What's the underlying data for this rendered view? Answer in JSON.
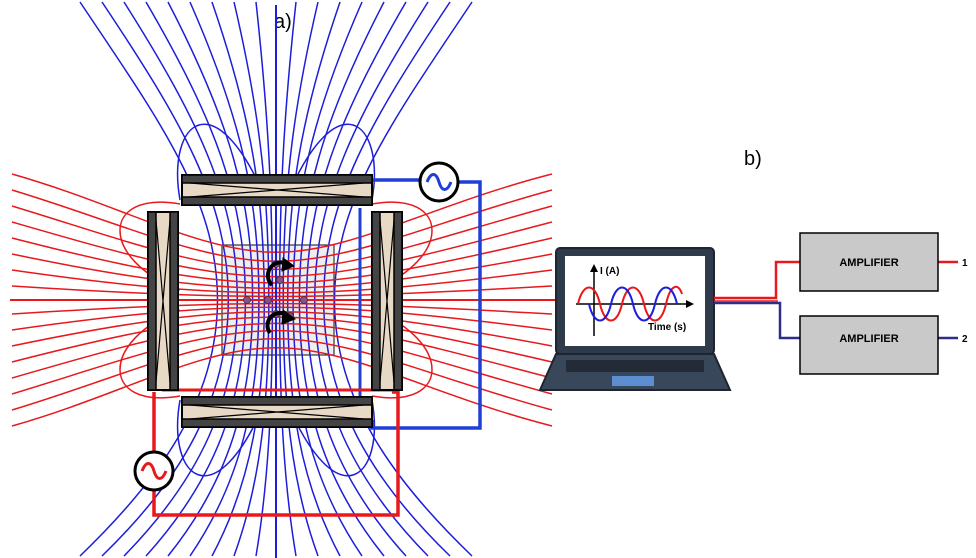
{
  "labels": {
    "panel_a": "a)",
    "panel_b": "b)"
  },
  "plot": {
    "y_label": "I (A)",
    "x_label": "Time (s)"
  },
  "amplifiers": [
    {
      "label": "AMPLIFIER",
      "output": "1"
    },
    {
      "label": "AMPLIFIER",
      "output": "2"
    }
  ],
  "icons": {
    "ac_source": "ac-source-icon",
    "rotation": "rotation-arrow-icon"
  },
  "colors": {
    "field_red": "#e8191c",
    "field_blue": "#1d1ddb",
    "wire_red": "#e8191c",
    "wire_blue": "#1f3fd6",
    "wire_navy": "#2d2d8a",
    "amplifier_fill": "#c9c9c9",
    "laptop_body": "#2f3a4a",
    "laptop_screen": "#5d8ed1"
  }
}
